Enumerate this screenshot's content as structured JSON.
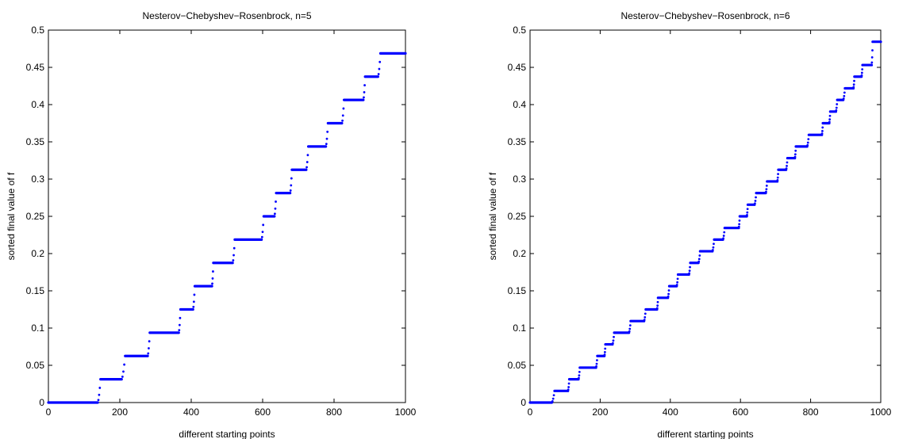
{
  "chart_data": [
    {
      "type": "scatter",
      "title": "Nesterov−Chebyshev−Rosenbrock, n=5",
      "xlabel": "different starting points",
      "ylabel": "sorted final value of f",
      "xlim": [
        0,
        1000
      ],
      "ylim": [
        0,
        0.5
      ],
      "xticks": [
        "0",
        "200",
        "400",
        "600",
        "800",
        "1000"
      ],
      "yticks": [
        "0",
        "0.05",
        "0.1",
        "0.15",
        "0.2",
        "0.25",
        "0.3",
        "0.35",
        "0.4",
        "0.45",
        "0.5"
      ],
      "grid": false,
      "marker_color": "#0000ff",
      "steps": [
        {
          "x_start": 0,
          "x_end": 138,
          "y": 0.0
        },
        {
          "x_start": 146,
          "x_end": 205,
          "y": 0.03125
        },
        {
          "x_start": 215,
          "x_end": 278,
          "y": 0.0625
        },
        {
          "x_start": 284,
          "x_end": 365,
          "y": 0.09375
        },
        {
          "x_start": 370,
          "x_end": 405,
          "y": 0.125
        },
        {
          "x_start": 410,
          "x_end": 458,
          "y": 0.15625
        },
        {
          "x_start": 462,
          "x_end": 516,
          "y": 0.1875
        },
        {
          "x_start": 522,
          "x_end": 597,
          "y": 0.21875
        },
        {
          "x_start": 603,
          "x_end": 633,
          "y": 0.25
        },
        {
          "x_start": 638,
          "x_end": 677,
          "y": 0.28125
        },
        {
          "x_start": 682,
          "x_end": 722,
          "y": 0.3125
        },
        {
          "x_start": 728,
          "x_end": 777,
          "y": 0.34375
        },
        {
          "x_start": 783,
          "x_end": 822,
          "y": 0.375
        },
        {
          "x_start": 828,
          "x_end": 882,
          "y": 0.40625
        },
        {
          "x_start": 887,
          "x_end": 923,
          "y": 0.4375
        },
        {
          "x_start": 930,
          "x_end": 1000,
          "y": 0.46875
        }
      ]
    },
    {
      "type": "scatter",
      "title": "Nesterov−Chebyshev−Rosenbrock, n=6",
      "xlabel": "different starting points",
      "ylabel": "sorted final value of f",
      "xlim": [
        0,
        1000
      ],
      "ylim": [
        0,
        0.5
      ],
      "xticks": [
        "0",
        "200",
        "400",
        "600",
        "800",
        "1000"
      ],
      "yticks": [
        "0",
        "0.05",
        "0.1",
        "0.15",
        "0.2",
        "0.25",
        "0.3",
        "0.35",
        "0.4",
        "0.45",
        "0.5"
      ],
      "grid": false,
      "marker_color": "#0000ff",
      "steps": [
        {
          "x_start": 0,
          "x_end": 62,
          "y": 0.0
        },
        {
          "x_start": 70,
          "x_end": 108,
          "y": 0.015625
        },
        {
          "x_start": 112,
          "x_end": 138,
          "y": 0.03125
        },
        {
          "x_start": 142,
          "x_end": 188,
          "y": 0.046875
        },
        {
          "x_start": 192,
          "x_end": 212,
          "y": 0.0625
        },
        {
          "x_start": 215,
          "x_end": 235,
          "y": 0.078125
        },
        {
          "x_start": 240,
          "x_end": 282,
          "y": 0.09375
        },
        {
          "x_start": 287,
          "x_end": 325,
          "y": 0.109375
        },
        {
          "x_start": 330,
          "x_end": 362,
          "y": 0.125
        },
        {
          "x_start": 365,
          "x_end": 393,
          "y": 0.140625
        },
        {
          "x_start": 397,
          "x_end": 418,
          "y": 0.15625
        },
        {
          "x_start": 422,
          "x_end": 453,
          "y": 0.171875
        },
        {
          "x_start": 457,
          "x_end": 480,
          "y": 0.1875
        },
        {
          "x_start": 485,
          "x_end": 520,
          "y": 0.203125
        },
        {
          "x_start": 525,
          "x_end": 550,
          "y": 0.21875
        },
        {
          "x_start": 555,
          "x_end": 595,
          "y": 0.234375
        },
        {
          "x_start": 598,
          "x_end": 618,
          "y": 0.25
        },
        {
          "x_start": 621,
          "x_end": 640,
          "y": 0.265625
        },
        {
          "x_start": 645,
          "x_end": 672,
          "y": 0.28125
        },
        {
          "x_start": 676,
          "x_end": 705,
          "y": 0.296875
        },
        {
          "x_start": 708,
          "x_end": 730,
          "y": 0.3125
        },
        {
          "x_start": 734,
          "x_end": 755,
          "y": 0.328125
        },
        {
          "x_start": 758,
          "x_end": 790,
          "y": 0.34375
        },
        {
          "x_start": 795,
          "x_end": 832,
          "y": 0.359375
        },
        {
          "x_start": 835,
          "x_end": 853,
          "y": 0.375
        },
        {
          "x_start": 856,
          "x_end": 872,
          "y": 0.390625
        },
        {
          "x_start": 876,
          "x_end": 893,
          "y": 0.40625
        },
        {
          "x_start": 898,
          "x_end": 922,
          "y": 0.421875
        },
        {
          "x_start": 925,
          "x_end": 945,
          "y": 0.4375
        },
        {
          "x_start": 948,
          "x_end": 974,
          "y": 0.453125
        },
        {
          "x_start": 977,
          "x_end": 1000,
          "y": 0.484375
        }
      ]
    }
  ]
}
